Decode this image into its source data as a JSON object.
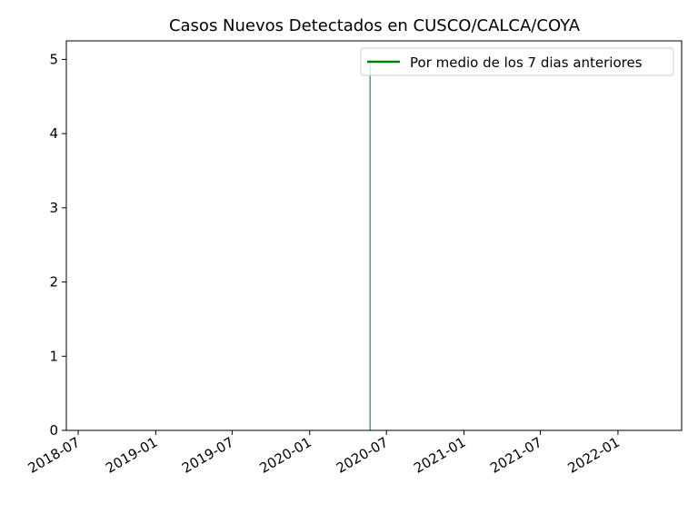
{
  "chart_data": {
    "type": "bar",
    "title": "Casos Nuevos Detectados en CUSCO/CALCA/COYA",
    "xlabel": "",
    "ylabel": "",
    "x_axis_type": "date",
    "xlim": [
      "2018-06-03",
      "2022-06-01"
    ],
    "ylim": [
      0,
      5.25
    ],
    "x_ticks": [
      "2018-07",
      "2019-01",
      "2019-07",
      "2020-01",
      "2020-07",
      "2021-01",
      "2021-07",
      "2022-01"
    ],
    "y_ticks": [
      0,
      1,
      2,
      3,
      4,
      5
    ],
    "grid": false,
    "legend_position": "top-right",
    "series": [
      {
        "type": "bar",
        "color": "#2d7f8a",
        "points": [
          {
            "x": "2020-05-23",
            "y": 5
          }
        ]
      },
      {
        "type": "line",
        "name": "Por medio de los 7 dias anteriores",
        "color": "#008000",
        "points": []
      }
    ]
  }
}
